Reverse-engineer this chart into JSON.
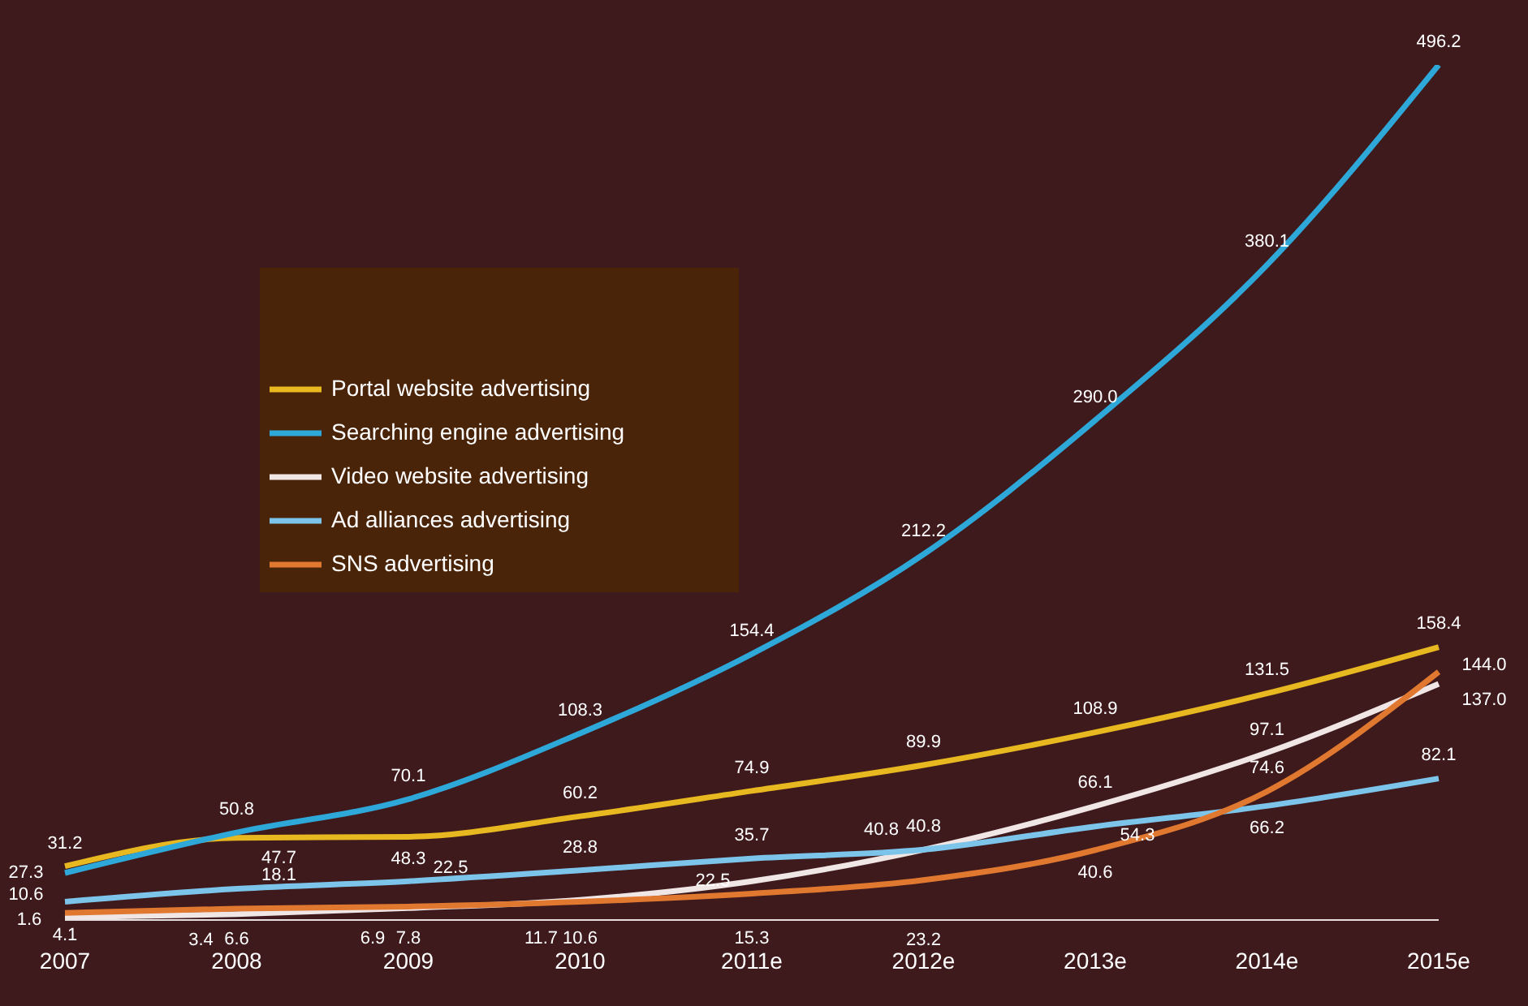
{
  "chart_data": {
    "type": "line",
    "categories": [
      "2007",
      "2008",
      "2009",
      "2010",
      "2011e",
      "2012e",
      "2013e",
      "2014e",
      "2015e"
    ],
    "series": [
      {
        "name": "Portal website advertising",
        "color": "#e8b820",
        "values": [
          31.2,
          47.7,
          48.3,
          60.2,
          74.9,
          89.9,
          108.9,
          131.5,
          158.4
        ],
        "value_labels": [
          "31.2",
          "47.7",
          "48.3",
          "60.2",
          "74.9",
          "89.9",
          "108.9",
          "131.5",
          "158.4"
        ]
      },
      {
        "name": "Searching engine advertising",
        "color": "#2ea8d8",
        "values": [
          27.3,
          50.8,
          70.1,
          108.3,
          154.4,
          212.2,
          290.0,
          380.1,
          496.2
        ],
        "value_labels": [
          "27.3",
          "50.8",
          "70.1",
          "108.3",
          "154.4",
          "212.2",
          "290.0",
          "380.1",
          "496.2"
        ]
      },
      {
        "name": "Video website advertising",
        "color": "#f0e6e6",
        "values": [
          1.6,
          3.4,
          6.9,
          11.7,
          22.5,
          40.8,
          66.1,
          97.1,
          137.0
        ],
        "value_labels": [
          "1.6",
          "3.4",
          "6.9",
          "11.7",
          "22.5",
          "40.8",
          "66.1",
          "97.1",
          "137.0"
        ]
      },
      {
        "name": "Ad alliances  advertising",
        "color": "#7cc4ea",
        "values": [
          10.6,
          18.1,
          22.5,
          28.8,
          35.7,
          40.8,
          54.3,
          66.2,
          82.1
        ],
        "value_labels": [
          "10.6",
          "18.1",
          "22.5",
          "28.8",
          "35.7",
          "40.8",
          "54.3",
          "66.2",
          "82.1"
        ]
      },
      {
        "name": "SNS advertising",
        "color": "#e07830",
        "values": [
          4.1,
          6.6,
          7.8,
          10.6,
          15.3,
          23.2,
          40.6,
          74.6,
          144.0
        ],
        "value_labels": [
          "4.1",
          "6.6",
          "7.8",
          "10.6",
          "15.3",
          "23.2",
          "40.6",
          "74.6",
          "144.0"
        ]
      }
    ],
    "tick_labels": "x",
    "legend": "top left",
    "line_style": "solid"
  }
}
